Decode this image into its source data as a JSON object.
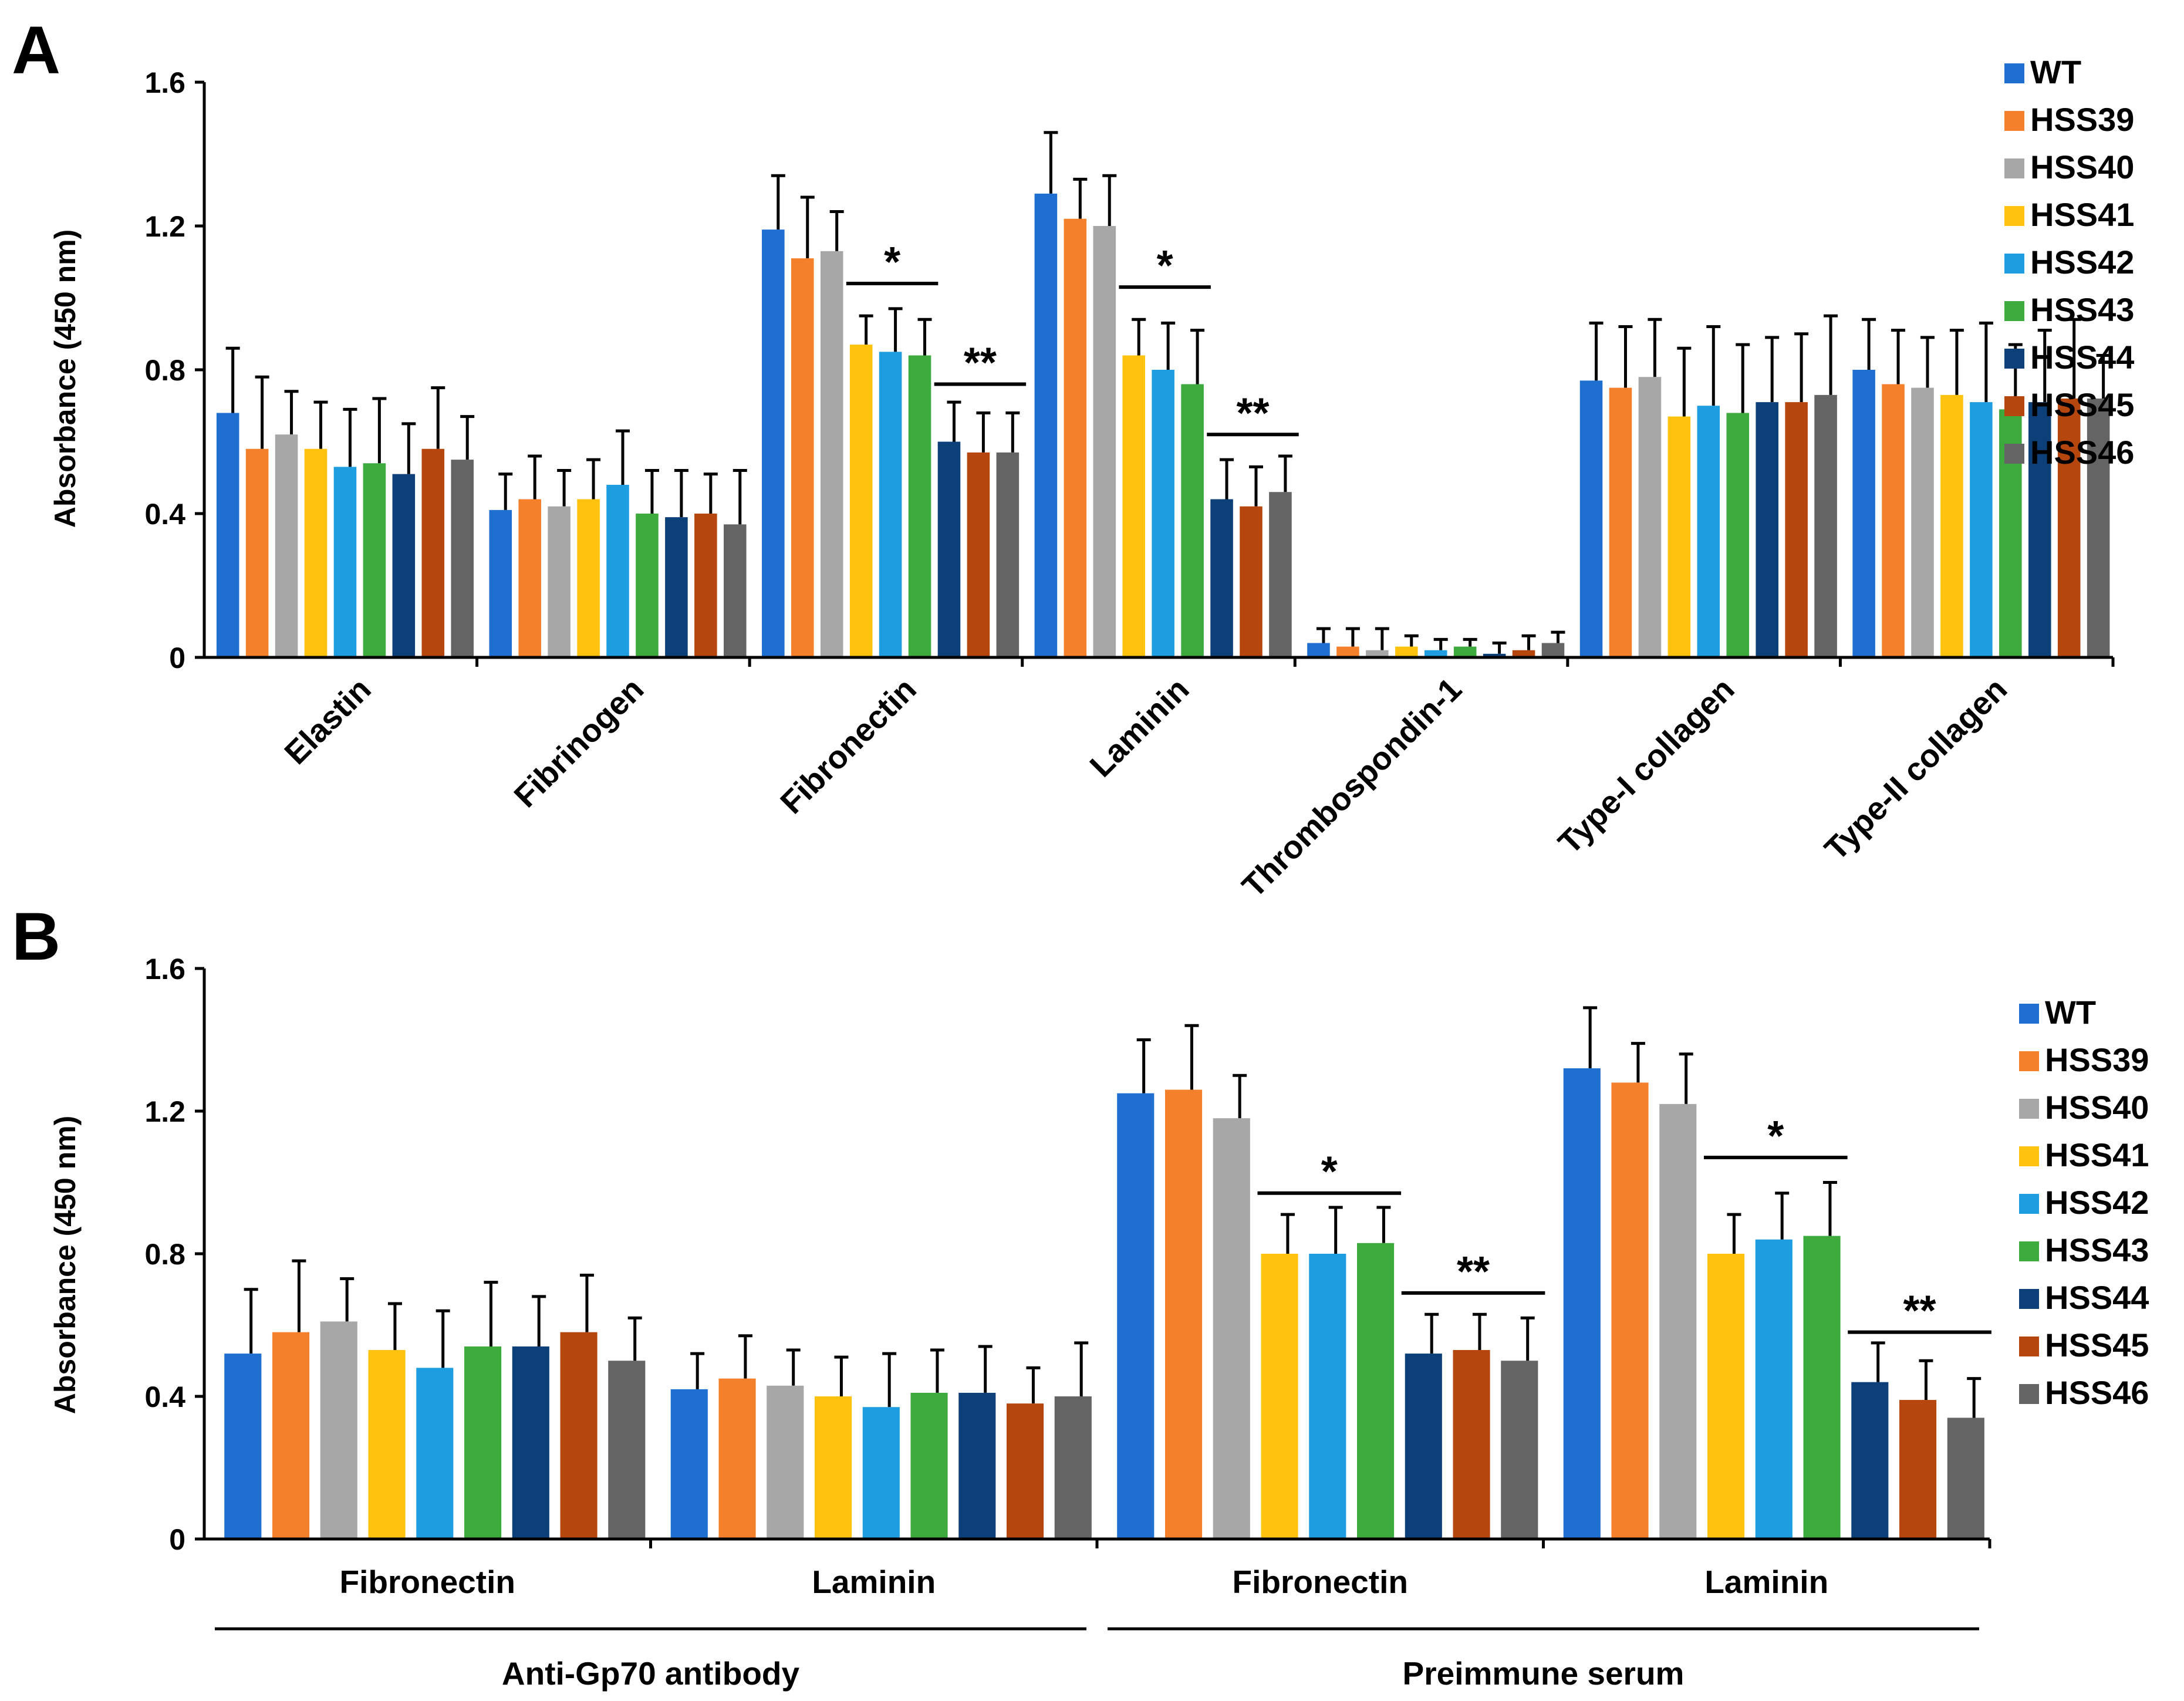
{
  "colors": {
    "WT": "#1F6FD0",
    "HSS39": "#F5802B",
    "HSS40": "#A7A7A7",
    "HSS41": "#FFC20E",
    "HSS42": "#1E9EE0",
    "HSS43": "#3CAA3C",
    "HSS44": "#0D3F78",
    "HSS45": "#B5470E",
    "HSS46": "#646464"
  },
  "chart_data": [
    {
      "panel": "A",
      "type": "bar",
      "ylabel": "Absorbance (450 nm)",
      "ylim": [
        0,
        1.6
      ],
      "yticks": [
        "0",
        "0.4",
        "0.8",
        "1.2",
        "1.6"
      ],
      "legend": [
        "WT",
        "HSS39",
        "HSS40",
        "HSS41",
        "HSS42",
        "HSS43",
        "HSS44",
        "HSS45",
        "HSS46"
      ],
      "categories": [
        "Elastin",
        "Fibrinogen",
        "Fibronectin",
        "Laminin",
        "Thrombospondin-1",
        "Type-I collagen",
        "Type-II collagen"
      ],
      "series": [
        {
          "name": "WT",
          "values": [
            0.68,
            0.41,
            1.19,
            1.29,
            0.04,
            0.77,
            0.8
          ],
          "errors": [
            0.18,
            0.1,
            0.15,
            0.17,
            0.04,
            0.16,
            0.14
          ]
        },
        {
          "name": "HSS39",
          "values": [
            0.58,
            0.44,
            1.11,
            1.22,
            0.03,
            0.75,
            0.76
          ],
          "errors": [
            0.2,
            0.12,
            0.17,
            0.11,
            0.05,
            0.17,
            0.15
          ]
        },
        {
          "name": "HSS40",
          "values": [
            0.62,
            0.42,
            1.13,
            1.2,
            0.02,
            0.78,
            0.75
          ],
          "errors": [
            0.12,
            0.1,
            0.11,
            0.14,
            0.06,
            0.16,
            0.14
          ]
        },
        {
          "name": "HSS41",
          "values": [
            0.58,
            0.44,
            0.87,
            0.84,
            0.03,
            0.67,
            0.73
          ],
          "errors": [
            0.13,
            0.11,
            0.08,
            0.1,
            0.03,
            0.19,
            0.18
          ]
        },
        {
          "name": "HSS42",
          "values": [
            0.53,
            0.48,
            0.85,
            0.8,
            0.02,
            0.7,
            0.71
          ],
          "errors": [
            0.16,
            0.15,
            0.12,
            0.13,
            0.03,
            0.22,
            0.22
          ]
        },
        {
          "name": "HSS43",
          "values": [
            0.54,
            0.4,
            0.84,
            0.76,
            0.03,
            0.68,
            0.69
          ],
          "errors": [
            0.18,
            0.12,
            0.1,
            0.15,
            0.02,
            0.19,
            0.18
          ]
        },
        {
          "name": "HSS44",
          "values": [
            0.51,
            0.39,
            0.6,
            0.44,
            0.01,
            0.71,
            0.71
          ],
          "errors": [
            0.14,
            0.13,
            0.11,
            0.11,
            0.03,
            0.18,
            0.2
          ]
        },
        {
          "name": "HSS45",
          "values": [
            0.58,
            0.4,
            0.57,
            0.42,
            0.02,
            0.71,
            0.72
          ],
          "errors": [
            0.17,
            0.11,
            0.11,
            0.11,
            0.04,
            0.19,
            0.22
          ]
        },
        {
          "name": "HSS46",
          "values": [
            0.55,
            0.37,
            0.57,
            0.46,
            0.04,
            0.73,
            0.72
          ],
          "errors": [
            0.12,
            0.15,
            0.11,
            0.1,
            0.03,
            0.22,
            0.12
          ]
        }
      ],
      "annotations": [
        {
          "text": "*",
          "category": "Fibronectin",
          "from": "HSS41",
          "to": "HSS43",
          "y": 1.04
        },
        {
          "text": "**",
          "category": "Fibronectin",
          "from": "HSS44",
          "to": "HSS46",
          "y": 0.76
        },
        {
          "text": "*",
          "category": "Laminin",
          "from": "HSS41",
          "to": "HSS43",
          "y": 1.03
        },
        {
          "text": "**",
          "category": "Laminin",
          "from": "HSS44",
          "to": "HSS46",
          "y": 0.62
        }
      ]
    },
    {
      "panel": "B",
      "type": "bar",
      "ylabel": "Absorbance (450 nm)",
      "ylim": [
        0,
        1.6
      ],
      "yticks": [
        "0",
        "0.4",
        "0.8",
        "1.2",
        "1.6"
      ],
      "legend": [
        "WT",
        "HSS39",
        "HSS40",
        "HSS41",
        "HSS42",
        "HSS43",
        "HSS44",
        "HSS45",
        "HSS46"
      ],
      "categories": [
        "Fibronectin",
        "Laminin",
        "Fibronectin",
        "Laminin"
      ],
      "groups": [
        {
          "label": "Anti-Gp70 antibody",
          "categories": [
            0,
            1
          ]
        },
        {
          "label": "Preimmune serum",
          "categories": [
            2,
            3
          ]
        }
      ],
      "series": [
        {
          "name": "WT",
          "values": [
            0.52,
            0.42,
            1.25,
            1.32
          ],
          "errors": [
            0.18,
            0.1,
            0.15,
            0.17
          ]
        },
        {
          "name": "HSS39",
          "values": [
            0.58,
            0.45,
            1.26,
            1.28
          ],
          "errors": [
            0.2,
            0.12,
            0.18,
            0.11
          ]
        },
        {
          "name": "HSS40",
          "values": [
            0.61,
            0.43,
            1.18,
            1.22
          ],
          "errors": [
            0.12,
            0.1,
            0.12,
            0.14
          ]
        },
        {
          "name": "HSS41",
          "values": [
            0.53,
            0.4,
            0.8,
            0.8
          ],
          "errors": [
            0.13,
            0.11,
            0.11,
            0.11
          ]
        },
        {
          "name": "HSS42",
          "values": [
            0.48,
            0.37,
            0.8,
            0.84
          ],
          "errors": [
            0.16,
            0.15,
            0.13,
            0.13
          ]
        },
        {
          "name": "HSS43",
          "values": [
            0.54,
            0.41,
            0.83,
            0.85
          ],
          "errors": [
            0.18,
            0.12,
            0.1,
            0.15
          ]
        },
        {
          "name": "HSS44",
          "values": [
            0.54,
            0.41,
            0.52,
            0.44
          ],
          "errors": [
            0.14,
            0.13,
            0.11,
            0.11
          ]
        },
        {
          "name": "HSS45",
          "values": [
            0.58,
            0.38,
            0.53,
            0.39
          ],
          "errors": [
            0.16,
            0.1,
            0.1,
            0.11
          ]
        },
        {
          "name": "HSS46",
          "values": [
            0.5,
            0.4,
            0.5,
            0.34
          ],
          "errors": [
            0.12,
            0.15,
            0.12,
            0.11
          ]
        }
      ],
      "annotations": [
        {
          "text": "*",
          "category": 2,
          "from": "HSS41",
          "to": "HSS43",
          "y": 0.97
        },
        {
          "text": "**",
          "category": 2,
          "from": "HSS44",
          "to": "HSS46",
          "y": 0.69
        },
        {
          "text": "*",
          "category": 3,
          "from": "HSS41",
          "to": "HSS43",
          "y": 1.07
        },
        {
          "text": "**",
          "category": 3,
          "from": "HSS44",
          "to": "HSS46",
          "y": 0.58
        }
      ]
    }
  ]
}
